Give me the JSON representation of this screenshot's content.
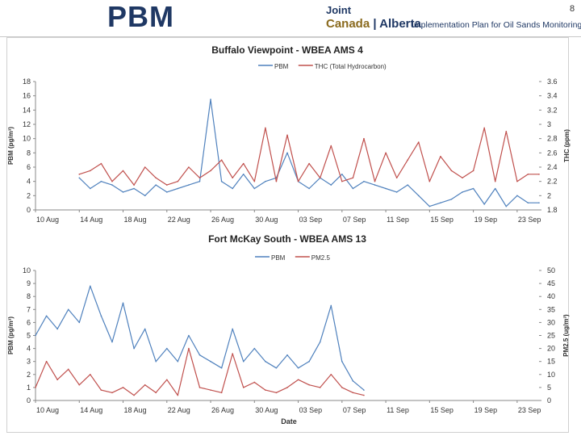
{
  "header": {
    "title": "PBM",
    "logo_joint": "Joint",
    "logo_canada": "Canada",
    "logo_alberta": "Alberta",
    "logo_subtitle": "Implementation Plan for Oil Sands Monitoring",
    "page_number": "8"
  },
  "chart_data": [
    {
      "type": "line",
      "title": "Buffalo Viewpoint - WBEA AMS 4",
      "ylabel": "PBM (pg/m³)",
      "y2label": "THC (ppm)",
      "xlabel": "",
      "xlim": [
        0,
        46
      ],
      "ylim": [
        0,
        18
      ],
      "y2lim": [
        1.8,
        3.6
      ],
      "yticks": [
        "0",
        "2",
        "4",
        "6",
        "8",
        "10",
        "12",
        "14",
        "16",
        "18"
      ],
      "y2ticks": [
        "1.8",
        "2",
        "2.2",
        "2.4",
        "2.6",
        "2.8",
        "3",
        "3.2",
        "3.4",
        "3.6"
      ],
      "xtick_positions": [
        0,
        4,
        8,
        12,
        16,
        20,
        24,
        28,
        32,
        36,
        40,
        44
      ],
      "xtick_labels": [
        "10 Aug",
        "14 Aug",
        "18 Aug",
        "22 Aug",
        "26 Aug",
        "30 Aug",
        "03 Sep",
        "07 Sep",
        "11 Sep",
        "15 Sep",
        "19 Sep",
        "23 Sep"
      ],
      "legend_position": "top-center",
      "series": [
        {
          "name": "PBM",
          "axis": "left",
          "color": "#4f81bd",
          "x": [
            4,
            5,
            6,
            7,
            8,
            9,
            10,
            11,
            12,
            13,
            14,
            15,
            16,
            17,
            18,
            19,
            20,
            21,
            22,
            23,
            24,
            25,
            26,
            27,
            28,
            29,
            30,
            31,
            32,
            33,
            34,
            35,
            36,
            37,
            38,
            39,
            40,
            41,
            42,
            43,
            44,
            45,
            46
          ],
          "values": [
            4.5,
            3.0,
            4.0,
            3.5,
            2.5,
            3.0,
            2.0,
            3.5,
            2.5,
            3.0,
            3.5,
            4.0,
            15.5,
            4.0,
            3.0,
            5.0,
            3.0,
            4.0,
            4.5,
            8.0,
            4.0,
            3.0,
            4.5,
            3.5,
            5.0,
            3.0,
            4.0,
            3.5,
            3.0,
            2.5,
            3.5,
            2.0,
            0.5,
            1.0,
            1.5,
            2.5,
            3.0,
            0.8,
            3.0,
            0.5,
            2.0,
            1.0,
            1.0
          ]
        },
        {
          "name": "THC (Total Hydrocarbon)",
          "axis": "right",
          "color": "#c0504d",
          "x": [
            4,
            5,
            6,
            7,
            8,
            9,
            10,
            11,
            12,
            13,
            14,
            15,
            16,
            17,
            18,
            19,
            20,
            21,
            22,
            23,
            24,
            25,
            26,
            27,
            28,
            29,
            30,
            31,
            32,
            33,
            34,
            35,
            36,
            37,
            38,
            39,
            40,
            41,
            42,
            43,
            44,
            45,
            46
          ],
          "values": [
            2.3,
            2.35,
            2.45,
            2.2,
            2.35,
            2.15,
            2.4,
            2.25,
            2.15,
            2.2,
            2.4,
            2.25,
            2.35,
            2.5,
            2.25,
            2.45,
            2.2,
            2.95,
            2.2,
            2.85,
            2.2,
            2.45,
            2.25,
            2.7,
            2.2,
            2.25,
            2.8,
            2.2,
            2.6,
            2.25,
            2.5,
            2.75,
            2.2,
            2.55,
            2.35,
            2.25,
            2.35,
            2.95,
            2.2,
            2.9,
            2.2,
            2.3,
            2.3
          ]
        }
      ]
    },
    {
      "type": "line",
      "title": "Fort McKay South - WBEA AMS 13",
      "ylabel": "PBM (pg/m³)",
      "y2label": "PM2.5 (ug/m³)",
      "xlabel": "Date",
      "xlim": [
        0,
        46
      ],
      "ylim": [
        0,
        10
      ],
      "y2lim": [
        0,
        50
      ],
      "yticks": [
        "0",
        "1",
        "2",
        "3",
        "4",
        "5",
        "6",
        "7",
        "8",
        "9",
        "10"
      ],
      "y2ticks": [
        "0",
        "5",
        "10",
        "15",
        "20",
        "25",
        "30",
        "35",
        "40",
        "45",
        "50"
      ],
      "xtick_positions": [
        0,
        4,
        8,
        12,
        16,
        20,
        24,
        28,
        32,
        36,
        40,
        44
      ],
      "xtick_labels": [
        "10 Aug",
        "14 Aug",
        "18 Aug",
        "22 Aug",
        "26 Aug",
        "30 Aug",
        "03 Sep",
        "07 Sep",
        "11 Sep",
        "15 Sep",
        "19 Sep",
        "23 Sep"
      ],
      "legend_position": "top-center",
      "series": [
        {
          "name": "PBM",
          "axis": "left",
          "color": "#4f81bd",
          "x": [
            0,
            1,
            2,
            3,
            4,
            5,
            6,
            7,
            8,
            9,
            10,
            11,
            12,
            13,
            14,
            15,
            16,
            17,
            18,
            19,
            20,
            21,
            22,
            23,
            24,
            25,
            26,
            27,
            28,
            29,
            30
          ],
          "values": [
            5.0,
            6.5,
            5.5,
            7.0,
            6.0,
            8.8,
            6.5,
            4.5,
            7.5,
            4.0,
            5.5,
            3.0,
            4.0,
            3.0,
            5.0,
            3.5,
            3.0,
            2.5,
            5.5,
            3.0,
            4.0,
            3.0,
            2.5,
            3.5,
            2.5,
            3.0,
            4.5,
            7.3,
            3.0,
            1.5,
            0.8
          ]
        },
        {
          "name": "PM2.5",
          "axis": "right",
          "color": "#c0504d",
          "x": [
            0,
            1,
            2,
            3,
            4,
            5,
            6,
            7,
            8,
            9,
            10,
            11,
            12,
            13,
            14,
            15,
            16,
            17,
            18,
            19,
            20,
            21,
            22,
            23,
            24,
            25,
            26,
            27,
            28,
            29,
            30
          ],
          "values": [
            5,
            15,
            8,
            12,
            6,
            10,
            4,
            3,
            5,
            2,
            6,
            3,
            8,
            2,
            20,
            5,
            4,
            3,
            18,
            5,
            7,
            4,
            3,
            5,
            8,
            6,
            5,
            10,
            5,
            3,
            2
          ]
        }
      ]
    }
  ]
}
